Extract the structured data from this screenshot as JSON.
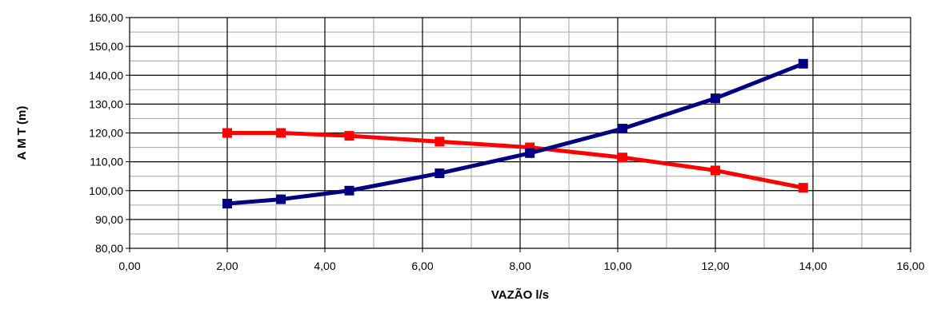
{
  "chart_data": {
    "type": "line",
    "xlabel": "VAZÃO l/s",
    "ylabel": "A M T (m)",
    "xlim": [
      0,
      16
    ],
    "ylim": [
      80,
      160
    ],
    "x_ticks": [
      "0,00",
      "2,00",
      "4,00",
      "6,00",
      "8,00",
      "10,00",
      "12,00",
      "14,00",
      "16,00"
    ],
    "y_ticks": [
      "80,00",
      "90,00",
      "100,00",
      "110,00",
      "120,00",
      "130,00",
      "140,00",
      "150,00",
      "160,00"
    ],
    "grid": true,
    "legend": "none",
    "series": [
      {
        "color": "#ff0000",
        "marker": "square",
        "x": [
          2.0,
          3.1,
          4.5,
          6.35,
          8.2,
          10.1,
          12.0,
          13.8
        ],
        "y": [
          120.0,
          120.0,
          119.0,
          117.0,
          115.0,
          111.5,
          107.0,
          101.0
        ]
      },
      {
        "color": "#000080",
        "marker": "square",
        "x": [
          2.0,
          3.1,
          4.5,
          6.35,
          8.2,
          10.1,
          12.0,
          13.8
        ],
        "y": [
          95.5,
          97.0,
          100.0,
          106.0,
          113.0,
          121.5,
          132.0,
          144.0
        ]
      }
    ]
  }
}
